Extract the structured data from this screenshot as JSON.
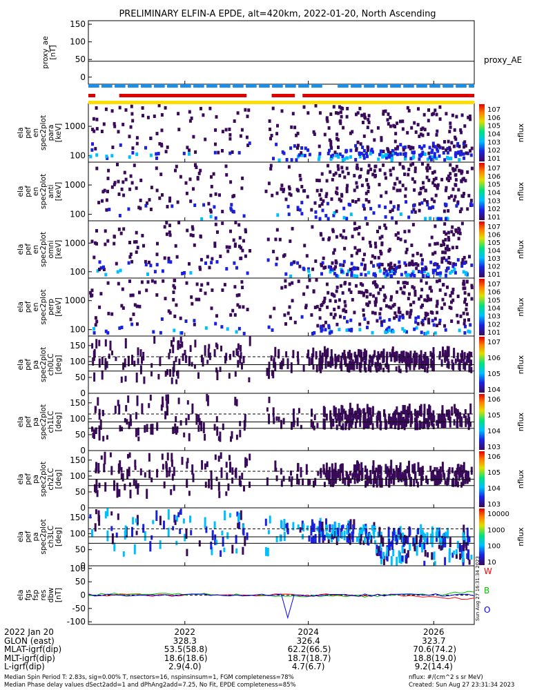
{
  "title": "PRELIMINARY ELFIN-A EPDE, alt=420km, 2022-01-20, North Ascending",
  "chart_data": {
    "type": "heatmap",
    "x": {
      "ticks": [
        "2022",
        "2024",
        "2026"
      ]
    },
    "panels": [
      {
        "id": "proxy_ae",
        "type": "line",
        "ylabel": "proxy_ae\n[nT]",
        "yticks": [
          "150",
          "100",
          "50",
          "0"
        ],
        "ylim": [
          -20,
          160
        ],
        "line_value": 45,
        "legend": "proxy_AE"
      },
      {
        "id": "spec_para",
        "type": "heatmap",
        "ylabel": "ela\npef\nen\nspec2plot\npara\n[keV]",
        "yticks": [
          "1000",
          "100"
        ],
        "yscale": "log",
        "cbar_ticks": [
          "107",
          "106",
          "105",
          "104",
          "103",
          "102",
          "101"
        ],
        "cbar_label": "nflux"
      },
      {
        "id": "spec_anti",
        "type": "heatmap",
        "ylabel": "ela\npef\nen\nspec2plot\nanti\n[keV]",
        "yticks": [
          "1000",
          "100"
        ],
        "yscale": "log",
        "cbar_ticks": [
          "107",
          "106",
          "105",
          "104",
          "103",
          "102",
          "101"
        ],
        "cbar_label": "nflux"
      },
      {
        "id": "spec_omni",
        "type": "heatmap",
        "ylabel": "ela\npef\nen\nspec2plot\nomni\n[keV]",
        "yticks": [
          "1000",
          "100"
        ],
        "yscale": "log",
        "cbar_ticks": [
          "107",
          "106",
          "105",
          "104",
          "103",
          "102",
          "101"
        ],
        "cbar_label": "nflux"
      },
      {
        "id": "spec_perp",
        "type": "heatmap",
        "ylabel": "ela\npef\nen\nspec2plot\nperp\n[keV]",
        "yticks": [
          "1000",
          "100"
        ],
        "yscale": "log",
        "cbar_ticks": [
          "107",
          "106",
          "105",
          "104",
          "103",
          "102",
          "101"
        ],
        "cbar_label": "nflux"
      },
      {
        "id": "pa_ch0",
        "type": "heatmap",
        "ylabel": "ela\npef\npa\nspec2plot\nch0LC\n[deg]",
        "yticks": [
          "150",
          "100",
          "50",
          "0"
        ],
        "ylim": [
          0,
          180
        ],
        "cbar_ticks": [
          "107",
          "106",
          "105",
          "104"
        ],
        "cbar_label": "nflux"
      },
      {
        "id": "pa_ch1",
        "type": "heatmap",
        "ylabel": "ela\npef\npa\nspec2plot\nch1LC\n[deg]",
        "yticks": [
          "150",
          "100",
          "50",
          "0"
        ],
        "ylim": [
          0,
          180
        ],
        "cbar_ticks": [
          "106",
          "105",
          "104",
          "103"
        ],
        "cbar_label": "nflux"
      },
      {
        "id": "pa_ch2",
        "type": "heatmap",
        "ylabel": "ela\npef\npa\nspec2plot\nch2LC\n[deg]",
        "yticks": [
          "150",
          "100",
          "50",
          "0"
        ],
        "ylim": [
          0,
          180
        ],
        "cbar_ticks": [
          "106",
          "105",
          "104",
          "103"
        ],
        "cbar_label": "nflux"
      },
      {
        "id": "pa_ch3",
        "type": "heatmap",
        "ylabel": "ela\npef\npa\nspec2plot\nch3LC\n[deg]",
        "yticks": [
          "150",
          "100",
          "50",
          "0"
        ],
        "ylim": [
          0,
          180
        ],
        "cbar_ticks": [
          "10000",
          "1000",
          "100",
          "10"
        ],
        "cbar_label": "nflux"
      },
      {
        "id": "fgs",
        "type": "line",
        "ylabel": "ela\nfgs\nfsp\nres\ndbw\n[nT]",
        "yticks": [
          "100",
          "50",
          "0",
          "-50",
          "-100"
        ],
        "ylim": [
          -110,
          110
        ],
        "series": [
          {
            "name": "W",
            "color": "#ff0000"
          },
          {
            "name": "B",
            "color": "#00c000"
          },
          {
            "name": "O",
            "color": "#0000ff"
          }
        ]
      }
    ]
  },
  "side_stamp": "Sun Aug 27 16:31:34 2023",
  "axis_table": {
    "rows": [
      {
        "label": "2022 Jan 20",
        "values": [
          "2022",
          "2024",
          "2026"
        ]
      },
      {
        "label": "GLON (east)",
        "values": [
          "328.3",
          "326.4",
          "323.7"
        ]
      },
      {
        "label": "MLAT-igrf(dip)",
        "values": [
          "53.5(58.8)",
          "62.2(66.5)",
          "70.6(74.2)"
        ]
      },
      {
        "label": "MLT-igrf(dip)",
        "values": [
          "18.6(18.6)",
          "18.7(18.7)",
          "18.8(19.0)"
        ]
      },
      {
        "label": "L-igrf(dip)",
        "values": [
          "2.9(4.0)",
          "4.7(6.7)",
          "9.2(14.4)"
        ]
      }
    ]
  },
  "footer": {
    "line1_left": "Median Spin Period T: 2.83s, sig=0.00% T, nsectors=16, nspinsinsum=1, FGM completeness=78%",
    "line2_left": "Median Phase delay values dSect2add=1 and dPhAng2add=7.25, No Fit, EPDE completeness=85%",
    "line1_right": "nflux: #/(cm^2 s sr MeV)",
    "line2_right": "Created: Sun Aug 27 23:31:34 2023"
  },
  "colors": {
    "purple": "#3a0a5a",
    "blue": "#1a22e0",
    "cyan": "#00bfff",
    "red": "#e00000",
    "yellow": "#ffdd00",
    "bar_blue": "#1e8fe6"
  }
}
